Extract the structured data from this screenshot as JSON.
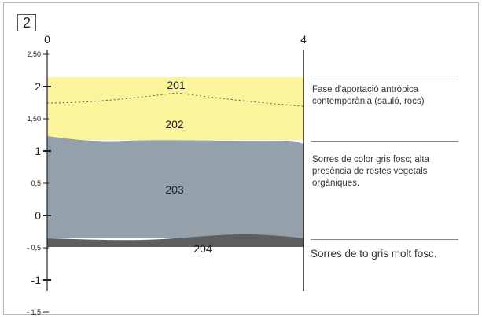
{
  "panel_number": "2",
  "x_axis": {
    "left_label": "0",
    "right_label": "4"
  },
  "y_axis": {
    "ticks": [
      {
        "value": 2.5,
        "label": "2,50",
        "small": true
      },
      {
        "value": 2,
        "label": "2",
        "small": false
      },
      {
        "value": 1.5,
        "label": "1,50",
        "small": true
      },
      {
        "value": 1,
        "label": "1",
        "small": false
      },
      {
        "value": 0.5,
        "label": "0,5",
        "small": true
      },
      {
        "value": 0,
        "label": "0",
        "small": false
      },
      {
        "value": -0.5,
        "label": "- 0,5",
        "small": true
      },
      {
        "value": -1,
        "label": "-1",
        "small": false
      },
      {
        "value": -1.5,
        "label": "- 1,5",
        "small": true
      }
    ],
    "range": [
      -1.5,
      2.5
    ]
  },
  "units": [
    {
      "label": "201",
      "color": "#fbf49a"
    },
    {
      "label": "202",
      "color": "#fbf49a"
    },
    {
      "label": "203",
      "color": "#94a1ab"
    },
    {
      "label": "204",
      "color": "#5e5e5e"
    }
  ],
  "descriptions": [
    {
      "text": "Fase d'aportació antròpica contemporània (sauló, rocs)"
    },
    {
      "text": "Sorres de color gris fosc; alta presència de restes vegetals orgàniques."
    },
    {
      "text": "Sorres de to gris molt fosc."
    }
  ],
  "colors": {
    "yellow_layer": "#fbf49a",
    "gray_layer": "#94a1ab",
    "dark_layer": "#5e5e5e",
    "axis": "#222222"
  }
}
